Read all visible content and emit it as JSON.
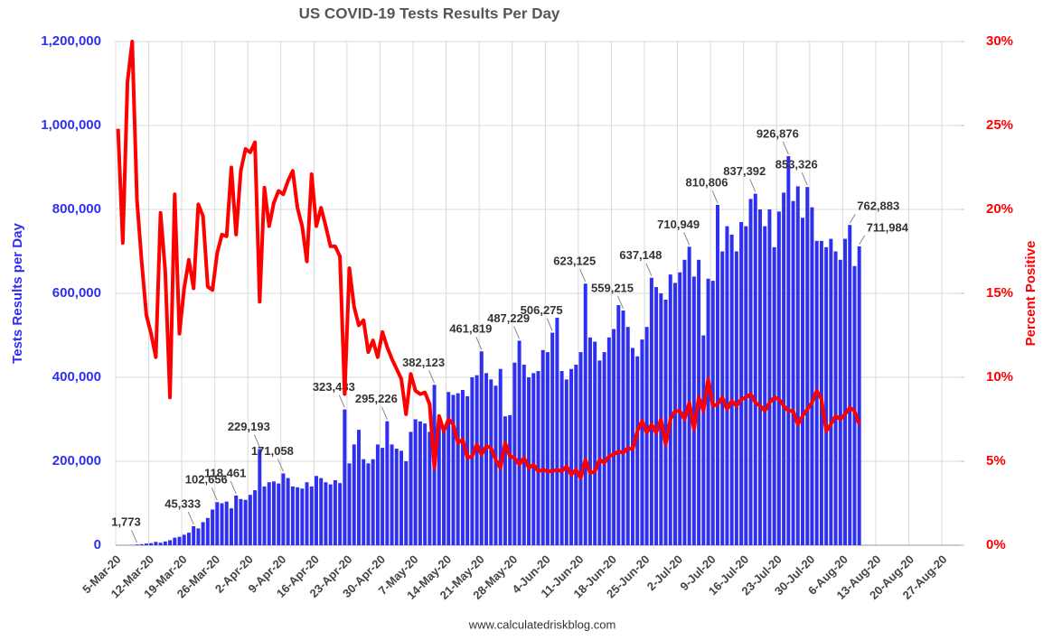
{
  "chart_data": {
    "type": "bar",
    "title": "US COVID-19 Tests Results Per Day",
    "source": "www.calculatedriskblog.com",
    "y_label": "Tests Results per Day",
    "y2_label": "Percent Positive",
    "grid": true,
    "categories": [
      "5-Mar-20",
      null,
      null,
      null,
      null,
      null,
      null,
      "12-Mar-20",
      null,
      null,
      null,
      null,
      null,
      null,
      "19-Mar-20",
      null,
      null,
      null,
      null,
      null,
      null,
      "26-Mar-20",
      null,
      null,
      null,
      null,
      null,
      null,
      "2-Apr-20",
      null,
      null,
      null,
      null,
      null,
      null,
      "9-Apr-20",
      null,
      null,
      null,
      null,
      null,
      null,
      "16-Apr-20",
      null,
      null,
      null,
      null,
      null,
      null,
      "23-Apr-20",
      null,
      null,
      null,
      null,
      null,
      null,
      "30-Apr-20",
      null,
      null,
      null,
      null,
      null,
      null,
      "7-May-20",
      null,
      null,
      null,
      null,
      null,
      null,
      "14-May-20",
      null,
      null,
      null,
      null,
      null,
      null,
      "21-May-20",
      null,
      null,
      null,
      null,
      null,
      null,
      "28-May-20",
      null,
      null,
      null,
      null,
      null,
      null,
      "4-Jun-20",
      null,
      null,
      null,
      null,
      null,
      null,
      "11-Jun-20",
      null,
      null,
      null,
      null,
      null,
      null,
      "18-Jun-20",
      null,
      null,
      null,
      null,
      null,
      null,
      "25-Jun-20",
      null,
      null,
      null,
      null,
      null,
      null,
      "2-Jul-20",
      null,
      null,
      null,
      null,
      null,
      null,
      "9-Jul-20",
      null,
      null,
      null,
      null,
      null,
      null,
      "16-Jul-20",
      null,
      null,
      null,
      null,
      null,
      null,
      "23-Jul-20",
      null,
      null,
      null,
      null,
      null,
      null,
      "30-Jul-20",
      null,
      null,
      null,
      null,
      null,
      null,
      "6-Aug-20",
      null,
      null,
      null,
      null,
      null,
      null,
      "13-Aug-20",
      null,
      null,
      null,
      null,
      null,
      null,
      "20-Aug-20",
      null,
      null,
      null,
      null,
      null,
      null,
      "27-Aug-20",
      null,
      null,
      null
    ],
    "series": [
      {
        "type": "bar",
        "color": "#2f2ff0",
        "values": [
          100,
          150,
          300,
          600,
          1773,
          2500,
          4000,
          5000,
          8000,
          6000,
          9000,
          12000,
          18000,
          20000,
          25000,
          30000,
          45333,
          40000,
          55000,
          65000,
          85000,
          102656,
          100000,
          104000,
          88000,
          118461,
          110000,
          108000,
          120000,
          131000,
          229193,
          140000,
          150000,
          152000,
          147000,
          171058,
          160000,
          140000,
          138000,
          135000,
          150000,
          140000,
          165000,
          160000,
          150000,
          145000,
          155000,
          148000,
          323483,
          195000,
          240000,
          275000,
          205000,
          195000,
          205000,
          240000,
          232000,
          295226,
          240000,
          230000,
          225000,
          200000,
          270000,
          300000,
          295000,
          290000,
          270000,
          382123,
          300000,
          285000,
          365000,
          358000,
          362000,
          370000,
          355000,
          400000,
          405000,
          461819,
          410000,
          395000,
          380000,
          420000,
          307000,
          310000,
          435000,
          487229,
          430000,
          400000,
          410000,
          415000,
          465000,
          460000,
          506275,
          542000,
          415000,
          395000,
          420000,
          430000,
          460000,
          623125,
          495000,
          485000,
          440000,
          460000,
          495000,
          515000,
          572000,
          559215,
          520000,
          470000,
          450000,
          490000,
          520000,
          637148,
          615000,
          600000,
          585000,
          645000,
          625000,
          650000,
          680000,
          710949,
          640000,
          680000,
          500000,
          635000,
          630000,
          810806,
          700000,
          760000,
          740000,
          700000,
          770000,
          760000,
          825000,
          837392,
          800000,
          760000,
          800000,
          710000,
          795000,
          840000,
          926876,
          820000,
          855000,
          780000,
          853326,
          805000,
          725000,
          725000,
          710000,
          730000,
          700000,
          680000,
          730000,
          762883,
          665000,
          711984,
          null,
          null,
          null,
          null,
          null,
          null,
          null,
          null,
          null,
          null,
          null,
          null,
          null,
          null,
          null,
          null,
          null,
          null,
          null,
          null,
          null
        ],
        "value_labels": [
          null,
          null,
          null,
          null,
          "1,773",
          null,
          null,
          null,
          null,
          null,
          null,
          null,
          null,
          null,
          null,
          null,
          "45,333",
          null,
          null,
          null,
          null,
          "102,656",
          null,
          null,
          null,
          "118,461",
          null,
          null,
          null,
          null,
          "229,193",
          null,
          null,
          null,
          null,
          "171,058",
          null,
          null,
          null,
          null,
          null,
          null,
          null,
          null,
          null,
          null,
          null,
          null,
          "323,483",
          null,
          null,
          null,
          null,
          null,
          null,
          null,
          null,
          "295,226",
          null,
          null,
          null,
          null,
          null,
          null,
          null,
          null,
          null,
          "382,123",
          null,
          null,
          null,
          null,
          null,
          null,
          null,
          null,
          null,
          "461,819",
          null,
          null,
          null,
          null,
          null,
          null,
          null,
          "487,229",
          null,
          null,
          null,
          null,
          null,
          null,
          "506,275",
          null,
          null,
          null,
          null,
          null,
          null,
          "623,125",
          null,
          null,
          null,
          null,
          null,
          null,
          null,
          "559,215",
          null,
          null,
          null,
          null,
          null,
          "637,148",
          null,
          null,
          null,
          null,
          null,
          null,
          null,
          "710,949",
          null,
          null,
          null,
          null,
          null,
          "810,806",
          null,
          null,
          null,
          null,
          null,
          null,
          null,
          "837,392",
          null,
          null,
          null,
          null,
          null,
          null,
          "926,876",
          null,
          null,
          null,
          "853,326",
          null,
          null,
          null,
          null,
          null,
          null,
          null,
          null,
          "762,883",
          null,
          "711,984",
          null,
          null,
          null,
          null,
          null,
          null,
          null,
          null,
          null,
          null,
          null,
          null,
          null,
          null,
          null,
          null,
          null,
          null,
          null,
          null,
          null
        ]
      },
      {
        "type": "line",
        "axis": "y2",
        "color": "#ff0000",
        "values": [
          24.8,
          18.0,
          27.6,
          30.0,
          20.6,
          16.9,
          13.7,
          12.6,
          11.2,
          19.8,
          16.3,
          8.8,
          20.9,
          12.6,
          15.3,
          17.0,
          15.3,
          20.3,
          19.6,
          15.4,
          15.2,
          17.4,
          18.5,
          18.4,
          22.5,
          18.5,
          22.3,
          23.6,
          23.4,
          24.0,
          14.5,
          21.3,
          19.0,
          20.4,
          21.1,
          20.9,
          21.7,
          22.3,
          20.1,
          19.0,
          16.9,
          22.1,
          19.0,
          20.1,
          19.0,
          17.8,
          17.8,
          17.2,
          9.0,
          16.5,
          14.2,
          13.1,
          13.4,
          11.5,
          12.2,
          11.2,
          12.7,
          11.8,
          11.1,
          10.5,
          9.9,
          7.8,
          10.2,
          9.2,
          9.0,
          9.1,
          8.4,
          4.6,
          7.7,
          6.8,
          7.5,
          7.2,
          6.1,
          6.3,
          5.2,
          5.3,
          6.0,
          5.4,
          5.9,
          5.8,
          5.1,
          4.6,
          6.1,
          5.3,
          5.2,
          4.8,
          5.2,
          4.6,
          4.8,
          4.4,
          4.5,
          4.4,
          4.4,
          4.5,
          4.4,
          4.7,
          4.2,
          4.5,
          4.0,
          5.1,
          4.3,
          4.4,
          5.1,
          4.9,
          5.3,
          5.4,
          5.6,
          5.5,
          5.8,
          5.7,
          6.8,
          7.4,
          6.7,
          7.2,
          6.7,
          7.5,
          6.0,
          7.5,
          8.0,
          8.0,
          7.5,
          8.5,
          6.9,
          8.8,
          8.0,
          9.9,
          8.3,
          8.4,
          8.8,
          8.1,
          8.6,
          8.3,
          8.7,
          8.8,
          9.0,
          8.5,
          8.3,
          8.0,
          8.5,
          8.8,
          8.7,
          8.3,
          8.0,
          8.0,
          7.2,
          7.7,
          8.1,
          8.5,
          9.2,
          8.7,
          6.8,
          7.2,
          7.7,
          7.5,
          7.8,
          8.2,
          8.0,
          7.2,
          null,
          null,
          null,
          null,
          null,
          null,
          null,
          null,
          null,
          null,
          null,
          null,
          null,
          null,
          null,
          null,
          null,
          null,
          null,
          null,
          null
        ]
      }
    ],
    "ylim": [
      0,
      1200000
    ],
    "yticks": [
      0,
      {
        "value": 200000,
        "label": "200,000"
      },
      {
        "value": 400000,
        "label": "400,000"
      },
      {
        "value": 600000,
        "label": "600,000"
      },
      {
        "value": 800000,
        "label": "800,000"
      },
      {
        "value": 1000000,
        "label": "1,000,000"
      },
      {
        "value": 1200000,
        "label": "1,200,000"
      }
    ],
    "y2lim": [
      0,
      30
    ],
    "y2ticks": [
      {
        "value": 0,
        "label": "0%"
      },
      {
        "value": 5,
        "label": "5%"
      },
      {
        "value": 10,
        "label": "10%"
      },
      {
        "value": 15,
        "label": "15%"
      },
      {
        "value": 20,
        "label": "20%"
      },
      {
        "value": 25,
        "label": "25%"
      },
      {
        "value": 30,
        "label": "30%"
      }
    ]
  }
}
